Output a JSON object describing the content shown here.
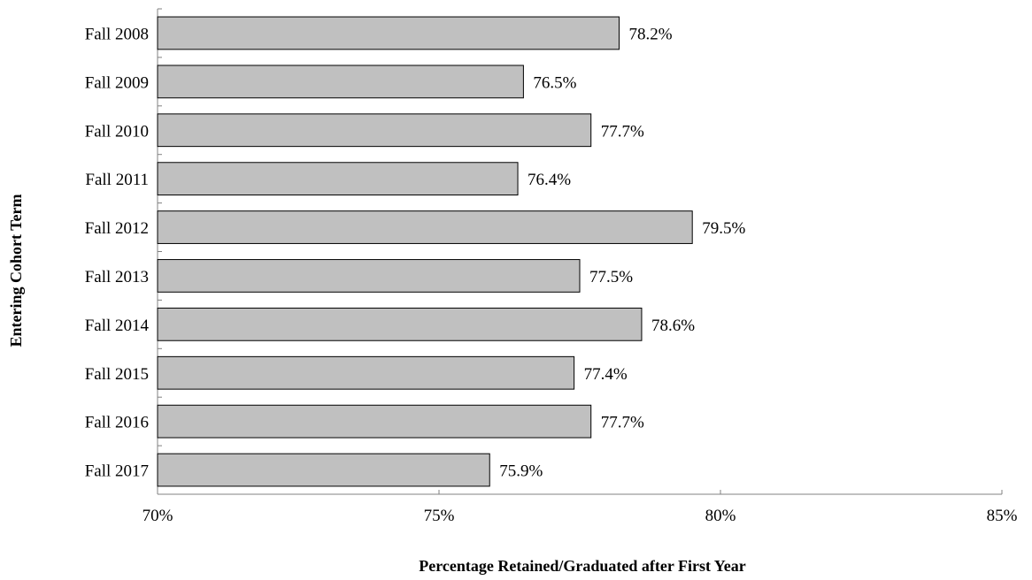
{
  "chart_data": {
    "type": "bar",
    "orientation": "horizontal",
    "title": "",
    "xlabel": "Percentage Retained/Graduated after First Year",
    "ylabel": "Entering Cohort  Term",
    "categories": [
      "Fall 2008",
      "Fall 2009",
      "Fall 2010",
      "Fall 2011",
      "Fall 2012",
      "Fall 2013",
      "Fall 2014",
      "Fall 2015",
      "Fall 2016",
      "Fall 2017"
    ],
    "values": [
      78.2,
      76.5,
      77.7,
      76.4,
      79.5,
      77.5,
      78.6,
      77.4,
      77.7,
      75.9
    ],
    "data_labels": [
      "78.2%",
      "76.5%",
      "77.7%",
      "76.4%",
      "79.5%",
      "77.5%",
      "78.6%",
      "77.4%",
      "77.7%",
      "75.9%"
    ],
    "xlim": [
      70,
      85
    ],
    "x_ticks": [
      70,
      75,
      80,
      85
    ],
    "x_tick_labels": [
      "70%",
      "75%",
      "80%",
      "85%"
    ],
    "grid": false,
    "legend": "none",
    "colors": {
      "bar_fill": "#c0c0c0",
      "bar_stroke": "#000000",
      "axis": "#808080"
    }
  }
}
